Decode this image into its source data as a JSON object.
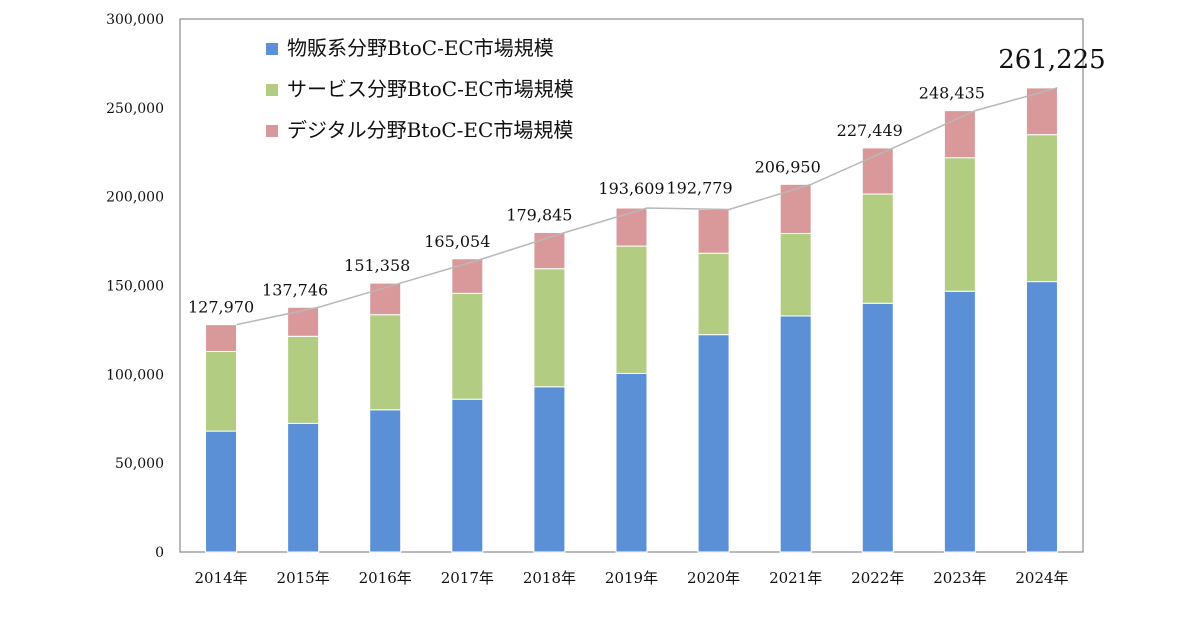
{
  "chart_data": {
    "type": "bar",
    "stacked": true,
    "categories": [
      "2014年",
      "2015年",
      "2016年",
      "2017年",
      "2018年",
      "2019年",
      "2020年",
      "2021年",
      "2022年",
      "2023年",
      "2024年"
    ],
    "series": [
      {
        "name": "物販系分野BtoC-EC市場規模",
        "color": "#5b8fd6",
        "values": [
          68043,
          72398,
          80043,
          86008,
          92992,
          100515,
          122333,
          132865,
          139997,
          146760,
          152194
        ]
      },
      {
        "name": "サービス分野BtoC-EC市場規模",
        "color": "#b2cc82",
        "values": [
          44816,
          49014,
          53532,
          59568,
          66471,
          71672,
          45832,
          46424,
          61477,
          75169,
          82719
        ]
      },
      {
        "name": "デジタル分野BtoC-EC市場規模",
        "color": "#d9999b",
        "values": [
          15111,
          16334,
          17783,
          19478,
          20382,
          21422,
          24614,
          27661,
          25975,
          26506,
          26312
        ]
      }
    ],
    "totals": [
      "127,970",
      "137,746",
      "151,358",
      "165,054",
      "179,845",
      "193,609",
      "192,779",
      "206,950",
      "227,449",
      "248,435",
      "261,225"
    ],
    "y_ticks": [
      "0",
      "50,000",
      "100,000",
      "150,000",
      "200,000",
      "250,000",
      "300,000"
    ],
    "ylim": [
      0,
      300000
    ],
    "grid": false,
    "legend_position": "top-left",
    "total_line_color": "#b8b8b8"
  }
}
